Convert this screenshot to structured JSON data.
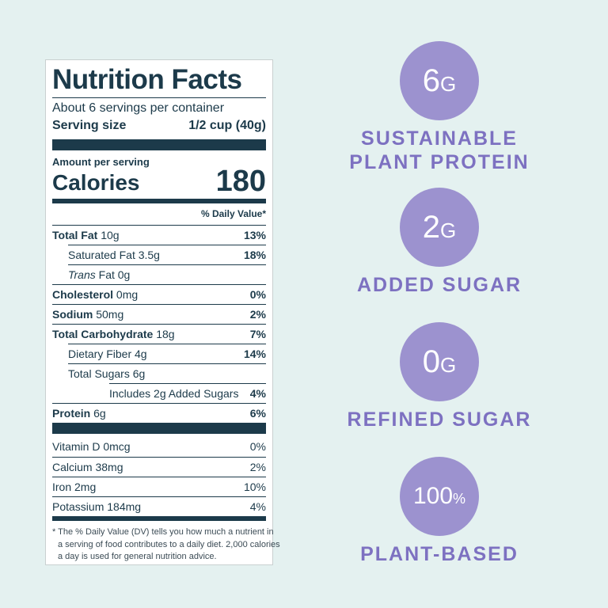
{
  "label": {
    "title": "Nutrition Facts",
    "servings": "About 6 servings per container",
    "serving_size_label": "Serving size",
    "serving_size": "1/2 cup (40g)",
    "amount_per_serving": "Amount per serving",
    "calories_label": "Calories",
    "calories": "180",
    "dv_header": "% Daily Value*",
    "rows": [
      {
        "name": "Total Fat",
        "amount": "10g",
        "dv": "13%"
      },
      {
        "name": "Saturated Fat 3.5g",
        "dv": "18%"
      },
      {
        "name": "Trans",
        "amount": "Fat 0g"
      },
      {
        "name": "Cholesterol",
        "amount": "0mg",
        "dv": "0%"
      },
      {
        "name": "Sodium",
        "amount": "50mg",
        "dv": "2%"
      },
      {
        "name": "Total Carbohydrate",
        "amount": "18g",
        "dv": "7%"
      },
      {
        "name": "Dietary Fiber 4g",
        "dv": "14%"
      },
      {
        "name": "Total Sugars 6g"
      },
      {
        "name": "Includes 2g Added Sugars",
        "dv": "4%"
      },
      {
        "name": "Protein",
        "amount": "6g",
        "dv": "6%"
      }
    ],
    "vitamins": [
      {
        "name": "Vitamin D 0mcg",
        "dv": "0%"
      },
      {
        "name": "Calcium 38mg",
        "dv": "2%"
      },
      {
        "name": "Iron 2mg",
        "dv": "10%"
      },
      {
        "name": "Potassium 184mg",
        "dv": "4%"
      }
    ],
    "footnote": [
      "* The % Daily Value (DV) tells you how much a nutrient in",
      "a serving of food contributes to a daily diet. 2,000 calories",
      "a day is used for general nutrition advice."
    ]
  },
  "highlights": [
    {
      "value": "6",
      "unit": "G",
      "text": [
        "SUSTAINABLE",
        "PLANT PROTEIN"
      ]
    },
    {
      "value": "2",
      "unit": "G",
      "text": [
        "ADDED SUGAR"
      ]
    },
    {
      "value": "0",
      "unit": "G",
      "text": [
        "REFINED SUGAR"
      ]
    },
    {
      "value": "100",
      "unit": "%",
      "text": [
        "PLANT-BASED"
      ]
    }
  ]
}
